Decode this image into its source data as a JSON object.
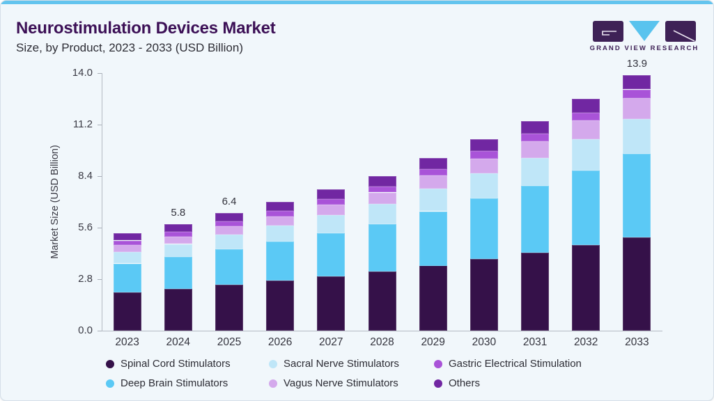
{
  "card": {
    "title": "Neurostimulation Devices Market",
    "subtitle": "Size, by Product, 2023 - 2033 (USD Billion)"
  },
  "logo": {
    "brand": "GRAND VIEW RESEARCH",
    "colors": {
      "block": "#3e2156",
      "triangle": "#59c3ee"
    }
  },
  "chart_data": {
    "type": "bar",
    "stacked": true,
    "title": "Neurostimulation Devices Market Size, by Product, 2023 - 2033 (USD Billion)",
    "xlabel": "",
    "ylabel": "Market Size (USD Billion)",
    "ylim": [
      0,
      14
    ],
    "yticks": [
      0.0,
      2.8,
      5.6,
      8.4,
      11.2,
      14.0
    ],
    "grid": false,
    "legend_position": "bottom",
    "categories": [
      "2023",
      "2024",
      "2025",
      "2026",
      "2027",
      "2028",
      "2029",
      "2030",
      "2031",
      "2032",
      "2033"
    ],
    "series": [
      {
        "name": "Spinal Cord Stimulators",
        "color": "#351149",
        "values": [
          2.1,
          2.28,
          2.5,
          2.71,
          2.95,
          3.2,
          3.54,
          3.89,
          4.23,
          4.64,
          5.07
        ]
      },
      {
        "name": "Deep Brain Stimulators",
        "color": "#5bc9f5",
        "values": [
          1.55,
          1.72,
          1.92,
          2.12,
          2.36,
          2.6,
          2.95,
          3.29,
          3.65,
          4.08,
          4.55
        ]
      },
      {
        "name": "Sacral Nerve Stimulators",
        "color": "#bfe6f8",
        "values": [
          0.64,
          0.71,
          0.79,
          0.88,
          0.98,
          1.08,
          1.22,
          1.37,
          1.52,
          1.69,
          1.89
        ]
      },
      {
        "name": "Vagus Nerve Stimulators",
        "color": "#d4a9ec",
        "values": [
          0.37,
          0.41,
          0.46,
          0.51,
          0.57,
          0.63,
          0.72,
          0.81,
          0.9,
          1.01,
          1.13
        ]
      },
      {
        "name": "Gastric Electrical Stimulation",
        "color": "#a953d8",
        "values": [
          0.24,
          0.25,
          0.27,
          0.29,
          0.31,
          0.33,
          0.36,
          0.39,
          0.41,
          0.44,
          0.47
        ]
      },
      {
        "name": "Others",
        "color": "#7127a2",
        "values": [
          0.4,
          0.43,
          0.46,
          0.49,
          0.53,
          0.56,
          0.61,
          0.65,
          0.69,
          0.74,
          0.79
        ]
      }
    ],
    "totals": [
      5.3,
      5.8,
      6.4,
      7.0,
      7.7,
      8.4,
      9.4,
      10.4,
      11.4,
      12.6,
      13.9
    ],
    "bar_total_labels": {
      "2024": "5.8",
      "2025": "6.4",
      "2033": "13.9"
    },
    "legend_order": [
      "Spinal Cord Stimulators",
      "Sacral Nerve Stimulators",
      "Gastric Electrical Stimulation",
      "Deep Brain Stimulators",
      "Vagus Nerve Stimulators",
      "Others"
    ]
  }
}
